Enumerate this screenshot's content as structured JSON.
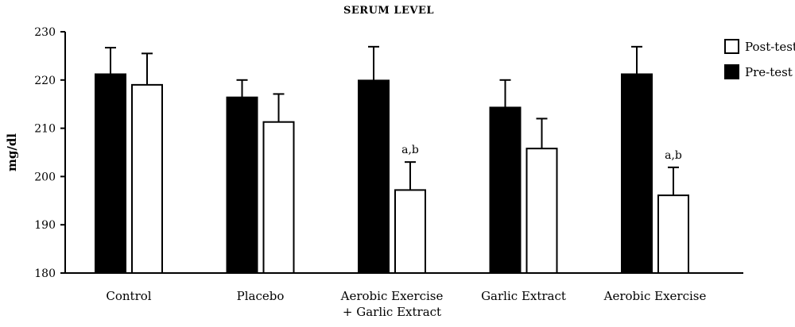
{
  "chart_data": {
    "type": "bar",
    "title": "SERUM LEVEL",
    "ylabel": "mg/dl",
    "xlabel": "",
    "ylim": [
      180,
      230
    ],
    "yticks": [
      180,
      190,
      200,
      210,
      220,
      230
    ],
    "grid": false,
    "legend_position": "top-right",
    "categories": [
      [
        "Control"
      ],
      [
        "Placebo"
      ],
      [
        "Aerobic Exercise",
        "+ Garlic Extract"
      ],
      [
        "Garlic Extract"
      ],
      [
        "Aerobic Exercise"
      ]
    ],
    "series": [
      {
        "name": "Pre-test",
        "color": "#000000",
        "values": [
          221.2,
          216.4,
          219.9,
          214.3,
          221.2
        ],
        "errors": [
          5.5,
          3.6,
          7.0,
          5.7,
          5.7
        ],
        "annotations": [
          "",
          "",
          "",
          "",
          ""
        ]
      },
      {
        "name": "Post-test",
        "color": "#ffffff",
        "values": [
          219.0,
          211.3,
          197.2,
          205.8,
          196.1
        ],
        "errors": [
          6.5,
          5.8,
          5.8,
          6.2,
          5.8
        ],
        "annotations": [
          "",
          "",
          "a,b",
          "",
          "a,b"
        ]
      }
    ],
    "legend_order": [
      "Post-test",
      "Pre-test"
    ]
  }
}
